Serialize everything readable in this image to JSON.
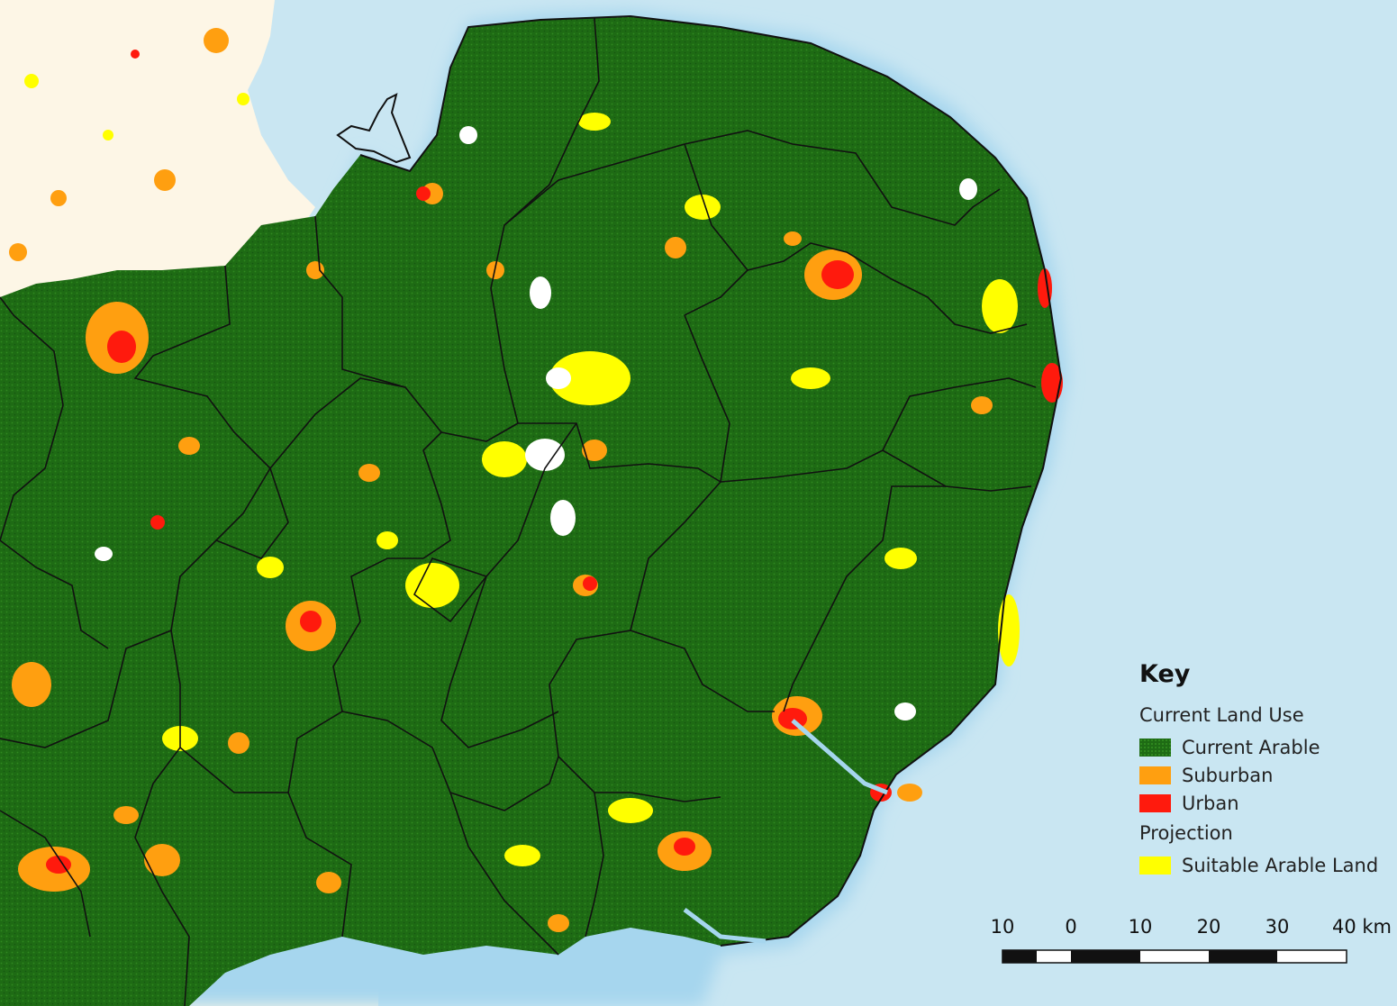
{
  "map": {
    "colors": {
      "sea": "#c9e6f2",
      "coast_glow": "#a6d6ee",
      "land_background": "#fdf6e6",
      "current_arable": "#1e6b14",
      "suburban": "#ff9f10",
      "urban": "#ff1a0d",
      "suitable_arable_land": "#ffff00",
      "boundaries": "#111111"
    }
  },
  "legend": {
    "title": "Key",
    "groups": [
      {
        "heading": "Current Land Use",
        "items": [
          {
            "label": "Current Arable",
            "color": "#1e6b14"
          },
          {
            "label": "Suburban",
            "color": "#ff9f10"
          },
          {
            "label": "Urban",
            "color": "#ff1a0d"
          }
        ]
      },
      {
        "heading": "Projection",
        "items": [
          {
            "label": "Suitable Arable Land",
            "color": "#ffff00"
          }
        ]
      }
    ]
  },
  "scalebar": {
    "labels": [
      "10",
      "0",
      "10",
      "20",
      "30",
      "40 km"
    ]
  }
}
